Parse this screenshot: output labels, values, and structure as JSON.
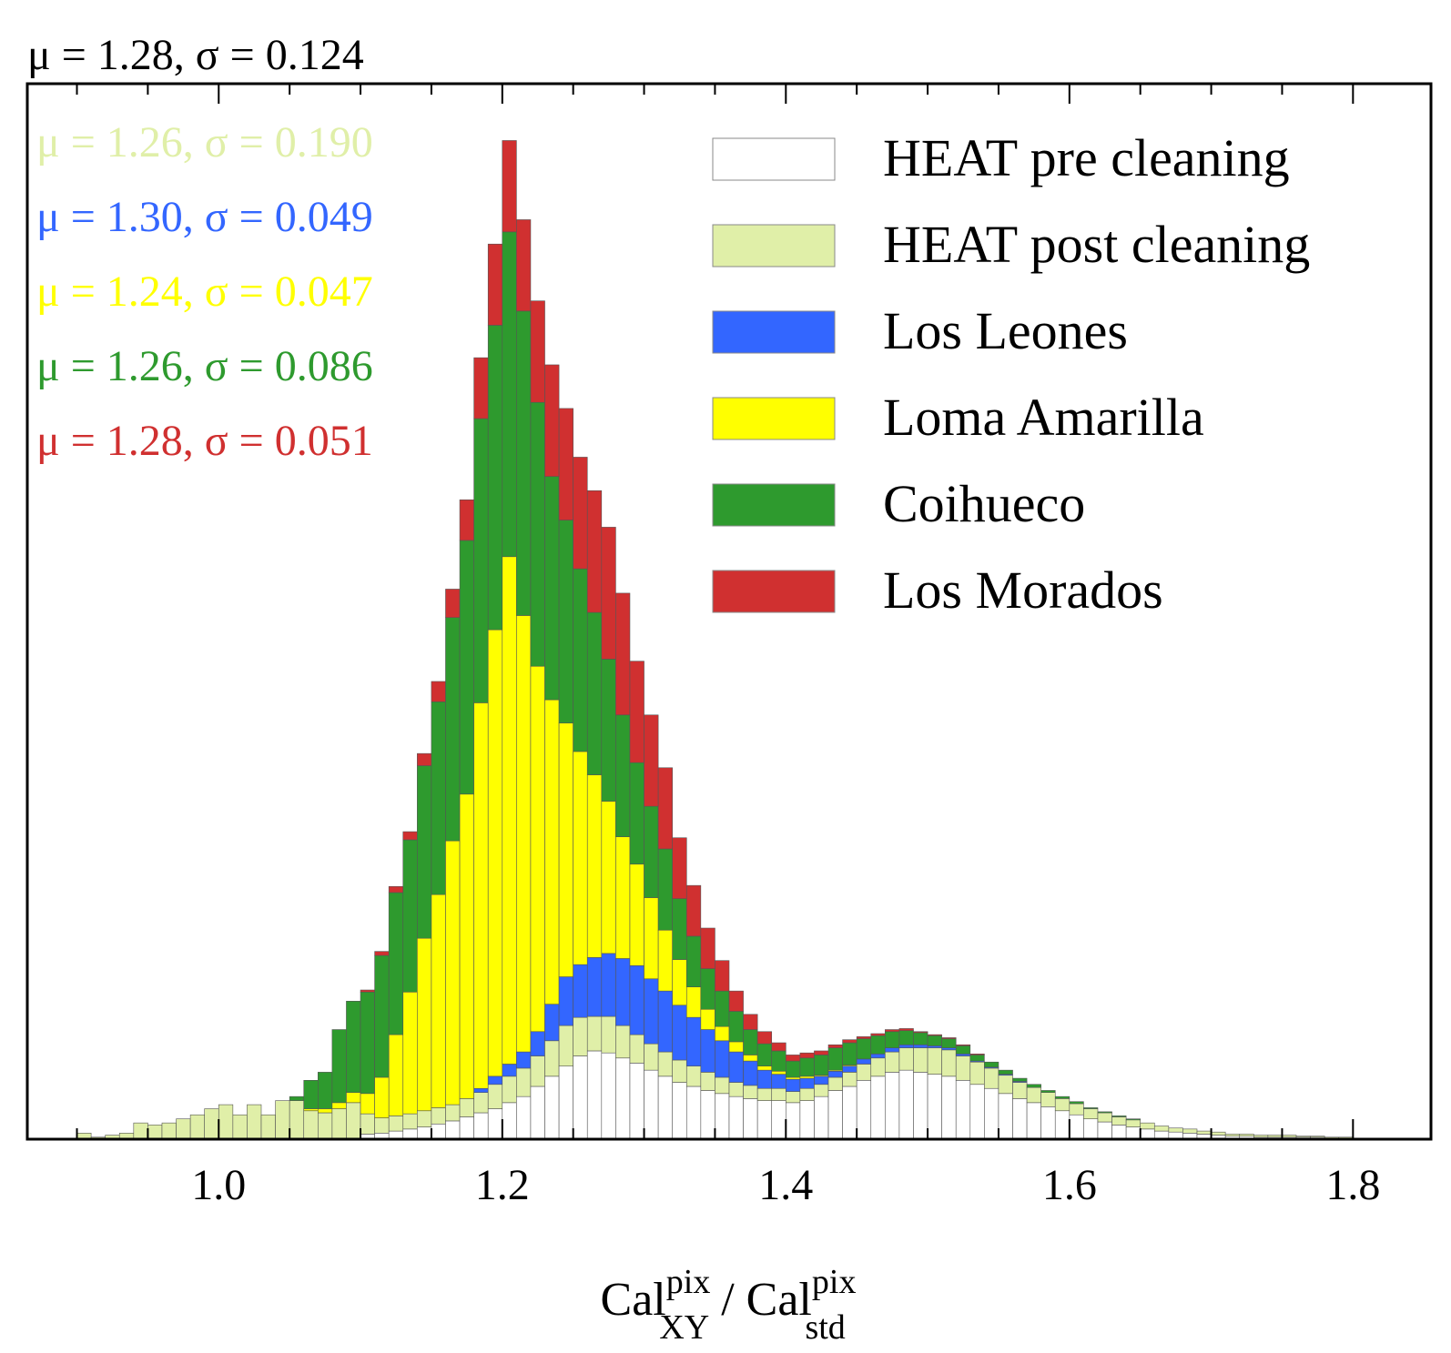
{
  "chart_data": {
    "type": "bar",
    "stacked": true,
    "xlabel": {
      "main1": "Cal",
      "sup1": "pix",
      "sub1": "XY",
      "sep": " / ",
      "main2": "Cal",
      "sup2": "pix",
      "sub2": "std"
    },
    "ylabel": "",
    "xlim": [
      0.865,
      1.855
    ],
    "ylim": [
      0,
      1.04
    ],
    "xticks": [
      1.0,
      1.2,
      1.4,
      1.6,
      1.8
    ],
    "xtick_labels": [
      "1.0",
      "1.2",
      "1.4",
      "1.6",
      "1.8"
    ],
    "bin_start": 0.9,
    "bin_width": 0.01,
    "grid": false,
    "legend_position": "top-right",
    "stats": [
      {
        "text": "μ = 1.28, σ = 0.124",
        "color": "#000000",
        "note": "top"
      },
      {
        "text": "μ = 1.26, σ = 0.190",
        "color": "#e0efa8"
      },
      {
        "text": "μ = 1.30, σ = 0.049",
        "color": "#3366ff"
      },
      {
        "text": "μ = 1.24, σ = 0.047",
        "color": "#ffff00"
      },
      {
        "text": "μ = 1.26, σ = 0.086",
        "color": "#2e9a2e"
      },
      {
        "text": "μ = 1.28, σ = 0.051",
        "color": "#d03030"
      }
    ],
    "series": [
      {
        "name": "HEAT pre cleaning",
        "color": "#ffffff",
        "values": [
          0,
          0,
          0,
          0,
          0,
          0,
          0,
          0,
          0,
          0,
          0,
          0,
          0,
          0,
          0,
          0,
          0,
          0,
          0,
          0,
          0.005,
          0.006,
          0.008,
          0.01,
          0.012,
          0.015,
          0.018,
          0.022,
          0.026,
          0.03,
          0.036,
          0.042,
          0.052,
          0.062,
          0.072,
          0.082,
          0.087,
          0.085,
          0.08,
          0.075,
          0.068,
          0.062,
          0.056,
          0.052,
          0.048,
          0.045,
          0.042,
          0.04,
          0.038,
          0.038,
          0.036,
          0.038,
          0.042,
          0.048,
          0.052,
          0.058,
          0.062,
          0.066,
          0.068,
          0.066,
          0.064,
          0.062,
          0.058,
          0.054,
          0.05,
          0.045,
          0.04,
          0.036,
          0.032,
          0.028,
          0.024,
          0.02,
          0.017,
          0.014,
          0.012,
          0.01,
          0.008,
          0.007,
          0.006,
          0.005,
          0.004,
          0.003,
          0.003,
          0.002,
          0.002,
          0.002,
          0.002,
          0.002,
          0.001,
          0.001
        ]
      },
      {
        "name": "HEAT post cleaning",
        "color": "#e0efa8",
        "values": [
          0.006,
          0.002,
          0.004,
          0.006,
          0.016,
          0.014,
          0.016,
          0.02,
          0.024,
          0.03,
          0.034,
          0.024,
          0.034,
          0.024,
          0.038,
          0.038,
          0.028,
          0.026,
          0.03,
          0.036,
          0.02,
          0.015,
          0.015,
          0.015,
          0.016,
          0.016,
          0.016,
          0.018,
          0.02,
          0.024,
          0.026,
          0.028,
          0.03,
          0.035,
          0.04,
          0.038,
          0.034,
          0.036,
          0.032,
          0.028,
          0.026,
          0.024,
          0.022,
          0.02,
          0.018,
          0.016,
          0.014,
          0.013,
          0.012,
          0.012,
          0.011,
          0.012,
          0.012,
          0.013,
          0.014,
          0.016,
          0.018,
          0.02,
          0.022,
          0.024,
          0.026,
          0.026,
          0.024,
          0.022,
          0.02,
          0.018,
          0.016,
          0.015,
          0.014,
          0.012,
          0.011,
          0.01,
          0.009,
          0.008,
          0.007,
          0.006,
          0.005,
          0.004,
          0.004,
          0.003,
          0.003,
          0.002,
          0.002,
          0.002,
          0.002,
          0.002,
          0.001,
          0.001,
          0.001,
          0.001
        ]
      },
      {
        "name": "Los Leones",
        "color": "#3366ff",
        "values": [
          0,
          0,
          0,
          0,
          0,
          0,
          0,
          0,
          0,
          0,
          0,
          0,
          0,
          0,
          0,
          0,
          0,
          0,
          0,
          0,
          0,
          0,
          0,
          0,
          0,
          0,
          0,
          0,
          0.004,
          0.008,
          0.012,
          0.016,
          0.024,
          0.036,
          0.048,
          0.052,
          0.058,
          0.062,
          0.066,
          0.068,
          0.064,
          0.06,
          0.054,
          0.048,
          0.042,
          0.036,
          0.03,
          0.024,
          0.018,
          0.014,
          0.012,
          0.01,
          0.008,
          0.006,
          0.006,
          0.005,
          0.004,
          0.004,
          0.003,
          0.003,
          0.002,
          0.002,
          0.002,
          0.001,
          0.001,
          0.001,
          0.001,
          0,
          0,
          0,
          0,
          0,
          0,
          0,
          0,
          0,
          0,
          0,
          0,
          0,
          0,
          0,
          0,
          0,
          0,
          0,
          0,
          0,
          0,
          0
        ]
      },
      {
        "name": "Loma Amarilla",
        "color": "#ffff00",
        "values": [
          0,
          0,
          0,
          0,
          0,
          0,
          0,
          0,
          0,
          0,
          0,
          0,
          0,
          0,
          0,
          0,
          0.002,
          0.004,
          0.006,
          0.01,
          0.02,
          0.04,
          0.08,
          0.12,
          0.17,
          0.21,
          0.26,
          0.3,
          0.38,
          0.44,
          0.5,
          0.43,
          0.36,
          0.3,
          0.25,
          0.21,
          0.18,
          0.15,
          0.12,
          0.1,
          0.08,
          0.06,
          0.045,
          0.03,
          0.02,
          0.014,
          0.01,
          0.006,
          0.004,
          0.003,
          0.002,
          0.002,
          0.001,
          0.001,
          0.001,
          0,
          0,
          0,
          0,
          0,
          0,
          0,
          0,
          0,
          0,
          0,
          0,
          0,
          0,
          0,
          0,
          0,
          0,
          0,
          0,
          0,
          0,
          0,
          0,
          0,
          0,
          0,
          0,
          0,
          0,
          0,
          0,
          0,
          0,
          0
        ]
      },
      {
        "name": "Coihueco",
        "color": "#2e9a2e",
        "values": [
          0,
          0,
          0,
          0,
          0,
          0,
          0,
          0,
          0,
          0,
          0,
          0,
          0,
          0,
          0,
          0.004,
          0.028,
          0.036,
          0.072,
          0.09,
          0.1,
          0.12,
          0.14,
          0.15,
          0.17,
          0.19,
          0.22,
          0.25,
          0.28,
          0.3,
          0.32,
          0.3,
          0.26,
          0.22,
          0.2,
          0.18,
          0.16,
          0.14,
          0.12,
          0.1,
          0.09,
          0.08,
          0.06,
          0.05,
          0.04,
          0.035,
          0.03,
          0.025,
          0.022,
          0.02,
          0.016,
          0.018,
          0.02,
          0.022,
          0.022,
          0.02,
          0.018,
          0.016,
          0.014,
          0.012,
          0.01,
          0.009,
          0.008,
          0.006,
          0.005,
          0.004,
          0.003,
          0.003,
          0.002,
          0.002,
          0.002,
          0.001,
          0.001,
          0.001,
          0.001,
          0,
          0,
          0,
          0,
          0,
          0,
          0,
          0,
          0,
          0,
          0,
          0,
          0,
          0,
          0
        ]
      },
      {
        "name": "Los Morados",
        "color": "#d03030",
        "values": [
          0,
          0,
          0,
          0,
          0,
          0,
          0,
          0,
          0,
          0,
          0,
          0,
          0,
          0,
          0,
          0,
          0,
          0,
          0,
          0,
          0.002,
          0.004,
          0.006,
          0.008,
          0.012,
          0.02,
          0.028,
          0.04,
          0.06,
          0.08,
          0.09,
          0.09,
          0.1,
          0.11,
          0.11,
          0.11,
          0.12,
          0.13,
          0.12,
          0.1,
          0.09,
          0.08,
          0.06,
          0.05,
          0.04,
          0.03,
          0.02,
          0.015,
          0.012,
          0.008,
          0.006,
          0.005,
          0.004,
          0.003,
          0.003,
          0.002,
          0.002,
          0.002,
          0.002,
          0.001,
          0.001,
          0.001,
          0.001,
          0.001,
          0,
          0,
          0,
          0,
          0,
          0,
          0,
          0,
          0,
          0,
          0,
          0,
          0,
          0,
          0,
          0,
          0,
          0,
          0,
          0,
          0,
          0,
          0,
          0,
          0,
          0
        ]
      }
    ]
  }
}
